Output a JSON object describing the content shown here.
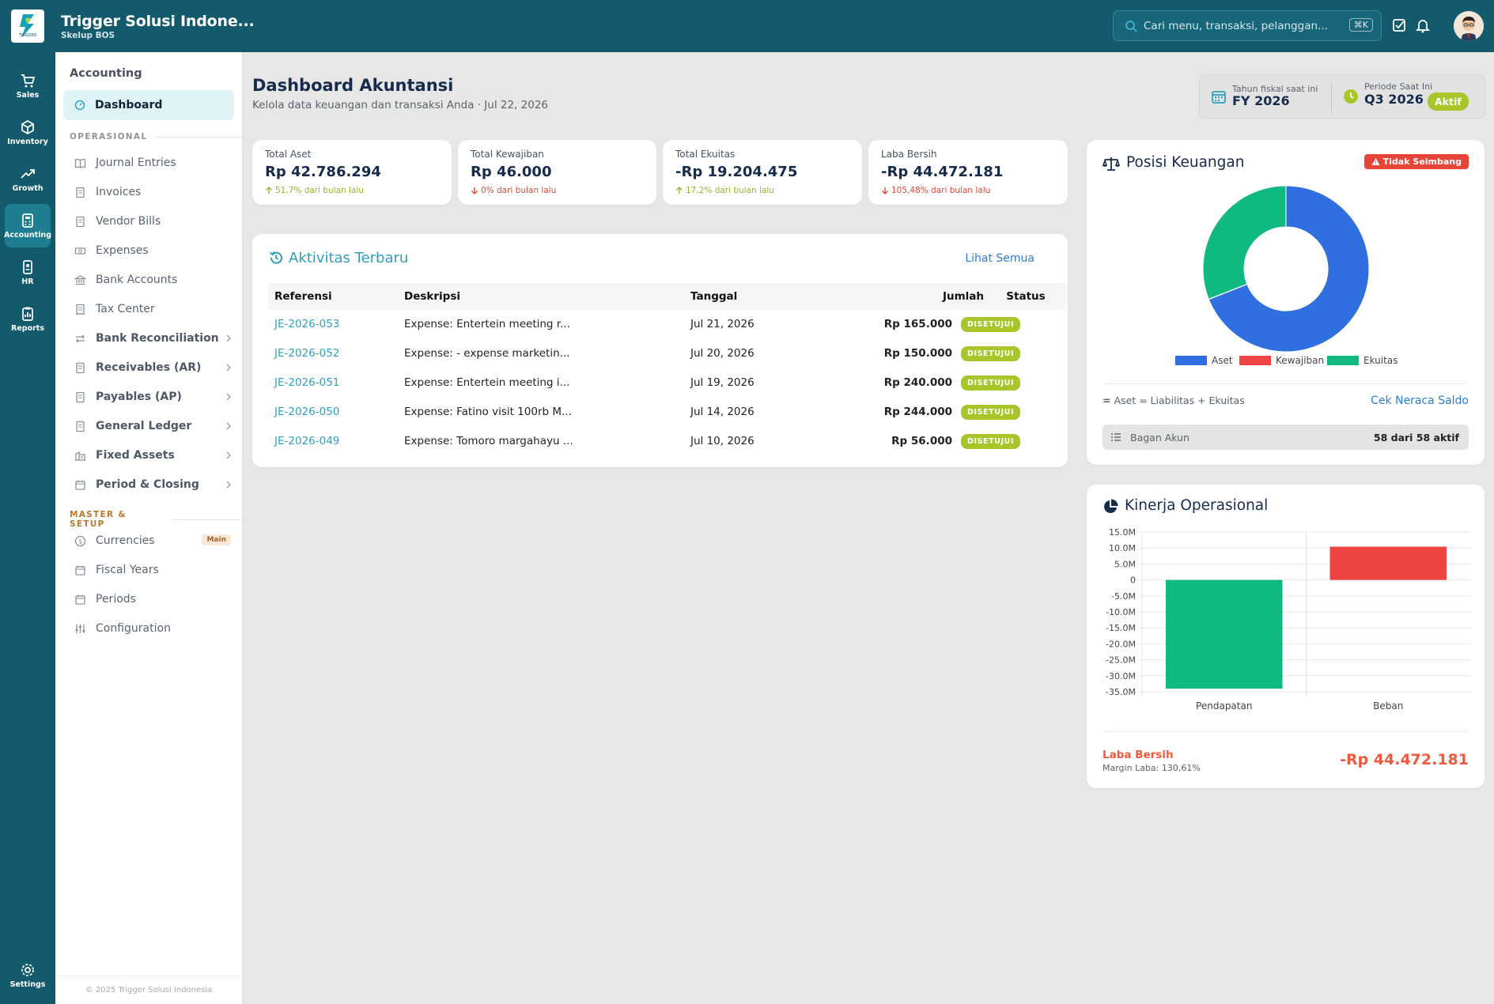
{
  "app": {
    "title": "Trigger Solusi Indone...",
    "subtitle": "Skelup BOS",
    "logo_text": "TRIGGER"
  },
  "search": {
    "placeholder": "Cari menu, transaksi, pelanggan...",
    "shortcut": "⌘K"
  },
  "rail": {
    "items": [
      {
        "label": "Sales",
        "icon": "cart-icon"
      },
      {
        "label": "Inventory",
        "icon": "box-icon"
      },
      {
        "label": "Growth",
        "icon": "trending-up-icon"
      },
      {
        "label": "Accounting",
        "icon": "calculator-icon",
        "active": true
      },
      {
        "label": "HR",
        "icon": "id-badge-icon"
      },
      {
        "label": "Reports",
        "icon": "clipboard-chart-icon"
      }
    ],
    "settings": "Settings"
  },
  "sidebar": {
    "heading": "Accounting",
    "active": "Dashboard",
    "section_operasional": "OPERASIONAL",
    "operasional": [
      "Journal Entries",
      "Invoices",
      "Vendor Bills",
      "Expenses",
      "Bank Accounts",
      "Tax Center",
      "Bank Reconciliation",
      "Receivables (AR)",
      "Payables (AP)",
      "General Ledger",
      "Fixed Assets",
      "Period & Closing"
    ],
    "section_master": "MASTER & SETUP",
    "master": [
      "Currencies",
      "Fiscal Years",
      "Periods",
      "Configuration"
    ],
    "currency_badge": "Main",
    "footer": "© 2025 Trigger Solusi Indonesia"
  },
  "page": {
    "title": "Dashboard Akuntansi",
    "subtitle": "Kelola data keuangan dan transaksi Anda · Jul 22, 2026"
  },
  "fiscal": {
    "year_label": "Tahun fiskal saat ini",
    "year_value": "FY 2026",
    "period_label": "Periode Saat Ini",
    "period_value": "Q3 2026",
    "status": "Aktif"
  },
  "stats": [
    {
      "label": "Total Aset",
      "value": "Rp 42.786.294",
      "change": "51,7% dari bulan lalu",
      "direction": "up"
    },
    {
      "label": "Total Kewajiban",
      "value": "Rp 46.000",
      "change": "0% dari bulan lalu",
      "direction": "down"
    },
    {
      "label": "Total Ekuitas",
      "value": "-Rp 19.204.475",
      "change": "17,2% dari bulan lalu",
      "direction": "up"
    },
    {
      "label": "Laba Bersih",
      "value": "-Rp 44.472.181",
      "change": "105,48% dari bulan lalu",
      "direction": "down"
    }
  ],
  "activity": {
    "title": "Aktivitas Terbaru",
    "link": "Lihat Semua",
    "columns": [
      "Referensi",
      "Deskripsi",
      "Tanggal",
      "Jumlah",
      "Status"
    ],
    "rows": [
      {
        "ref": "JE-2026-053",
        "desc": "Expense: Entertein meeting r...",
        "date": "Jul 21, 2026",
        "amount": "Rp 165.000",
        "status": "DISETUJUI"
      },
      {
        "ref": "JE-2026-052",
        "desc": "Expense: - expense marketin...",
        "date": "Jul 20, 2026",
        "amount": "Rp 150.000",
        "status": "DISETUJUI"
      },
      {
        "ref": "JE-2026-051",
        "desc": "Expense: Entertein meeting i...",
        "date": "Jul 19, 2026",
        "amount": "Rp 240.000",
        "status": "DISETUJUI"
      },
      {
        "ref": "JE-2026-050",
        "desc": "Expense: Fatino visit 100rb M...",
        "date": "Jul 14, 2026",
        "amount": "Rp 244.000",
        "status": "DISETUJUI"
      },
      {
        "ref": "JE-2026-049",
        "desc": "Expense: Tomoro margahayu ...",
        "date": "Jul 10, 2026",
        "amount": "Rp 56.000",
        "status": "DISETUJUI"
      }
    ]
  },
  "posisi": {
    "title": "Posisi Keuangan",
    "warning": "Tidak Seimbang",
    "equation": "Aset = Liabilitas + Ekuitas",
    "check_link": "Cek Neraca Saldo",
    "bagan_label": "Bagan Akun",
    "bagan_value": "58 dari 58 aktif"
  },
  "kinerja": {
    "title": "Kinerja Operasional",
    "laba_label": "Laba Bersih",
    "margin": "Margin Laba: 130,61%",
    "laba_value": "-Rp 44.472.181"
  },
  "chart_data": [
    {
      "type": "pie",
      "categories": [
        "Aset",
        "Kewajiban",
        "Ekuitas"
      ],
      "values": [
        42786294,
        46000,
        19204475
      ],
      "colors": [
        "#2f6fe0",
        "#ef4444",
        "#10b981"
      ],
      "legend": "bottom",
      "donut": true
    },
    {
      "type": "bar",
      "categories": [
        "Pendapatan",
        "Beban"
      ],
      "values": [
        -34050000,
        10420000
      ],
      "colors": [
        "#10b981",
        "#ef4444"
      ],
      "ylim": [
        -35000000,
        15000000
      ],
      "yticks": [
        "15.0M",
        "10.0M",
        "5.0M",
        "0",
        "-5.0M",
        "-10.0M",
        "-15.0M",
        "-20.0M",
        "-25.0M",
        "-30.0M",
        "-35.0M"
      ],
      "grid": true
    }
  ],
  "colors": {
    "topbar": "#135a6c",
    "accent": "#2f9fbd",
    "status": "#a8c52a",
    "danger": "#e9443a"
  }
}
